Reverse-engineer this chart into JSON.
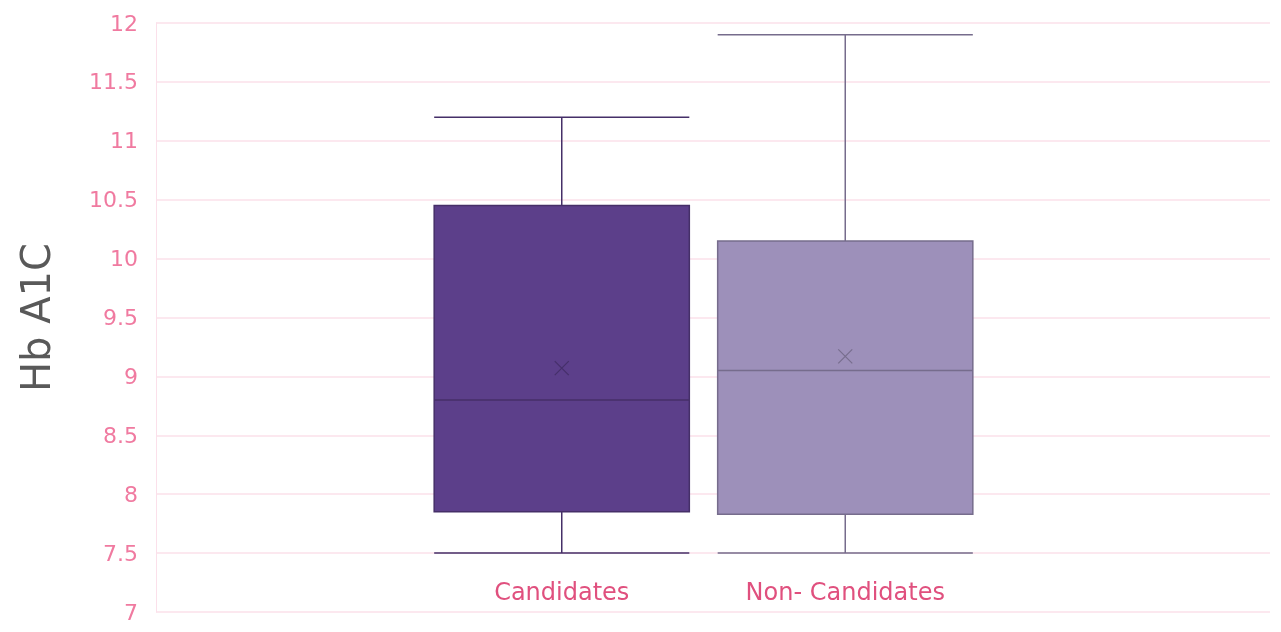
{
  "chart_data": {
    "type": "box",
    "ylabel": "Hb A1C",
    "categories": [
      "Candidates",
      "Non- Candidates"
    ],
    "ylim": [
      7,
      12
    ],
    "yticks": [
      7,
      7.5,
      8,
      8.5,
      9,
      9.5,
      10,
      10.5,
      11,
      11.5,
      12
    ],
    "grid": "y",
    "marker": "cross",
    "boxes": [
      {
        "low": 7.5,
        "q1": 7.85,
        "median": 8.8,
        "q3": 10.45,
        "high": 11.2,
        "mean": 9.07
      },
      {
        "low": 7.5,
        "q1": 7.83,
        "median": 9.05,
        "q3": 10.15,
        "high": 11.9,
        "mean": 9.17
      }
    ],
    "colors": [
      "#5c3f8a",
      "#9d90ba"
    ]
  }
}
